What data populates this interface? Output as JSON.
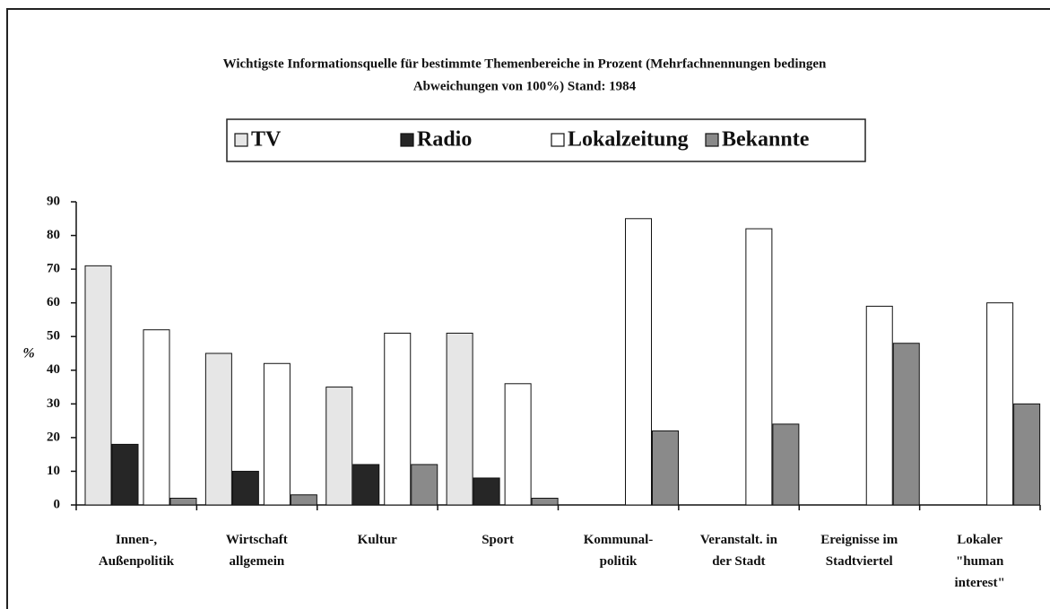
{
  "chart_data": {
    "type": "bar",
    "title": "Wichtigste Informationsquelle für bestimmte Themenbereiche in Prozent (Mehrfachnennungen bedingen",
    "subtitle": "Abweichungen von 100%) Stand: 1984",
    "y_label": "%",
    "categories": [
      "Innen-,\nAußenpolitik",
      "Wirtschaft\nallgemein",
      "Kultur",
      "Sport",
      "Kommunal-\npolitik",
      "Veranstalt. in\nder Stadt",
      "Ereignisse im\nStadtviertel",
      "Lokaler\n\"human\ninterest\""
    ],
    "series": [
      {
        "name": "TV",
        "color": "#e6e6e6",
        "values": [
          71,
          45,
          35,
          51,
          null,
          null,
          null,
          null
        ]
      },
      {
        "name": "Radio",
        "color": "#262626",
        "values": [
          18,
          10,
          12,
          8,
          null,
          null,
          null,
          null
        ]
      },
      {
        "name": "Lokalzeitung",
        "color": "#ffffff",
        "values": [
          52,
          42,
          51,
          36,
          85,
          82,
          59,
          60
        ]
      },
      {
        "name": "Bekannte",
        "color": "#8a8a8a",
        "values": [
          2,
          3,
          12,
          2,
          22,
          24,
          48,
          30
        ]
      }
    ],
    "ylim": [
      0,
      90
    ],
    "yticks": [
      0,
      10,
      20,
      30,
      40,
      50,
      60,
      70,
      80,
      90
    ],
    "grid": false
  }
}
